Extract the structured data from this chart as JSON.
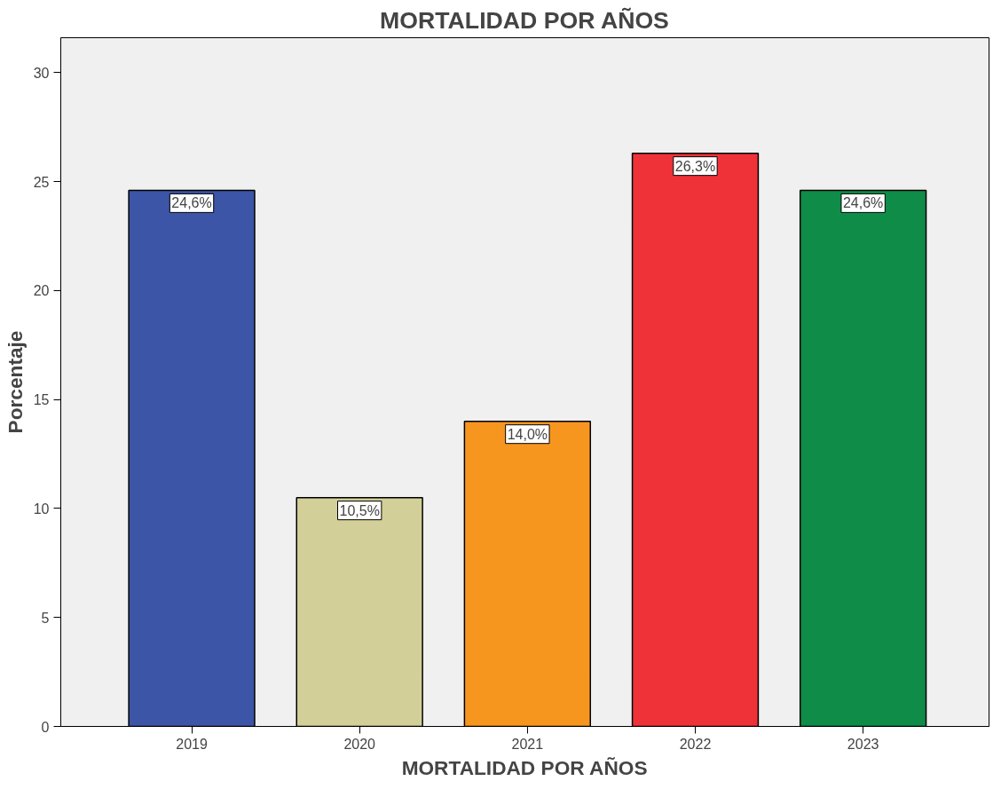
{
  "chart_data": {
    "type": "bar",
    "title": "MORTALIDAD POR AÑOS",
    "xlabel": "MORTALIDAD POR AÑOS",
    "ylabel": "Porcentaje",
    "categories": [
      "2019",
      "2020",
      "2021",
      "2022",
      "2023"
    ],
    "values": [
      24.6,
      10.5,
      14.0,
      26.3,
      24.6
    ],
    "colors": [
      "#3d55a6",
      "#d3cf98",
      "#f7961f",
      "#ef3237",
      "#0f8c47"
    ],
    "value_labels": [
      "24,6%",
      "10,5%",
      "14,0%",
      "26,3%",
      "24,6%"
    ],
    "ylim": [
      0,
      31.6
    ],
    "yticks": [
      0,
      5,
      10,
      15,
      20,
      25,
      30
    ],
    "grid": false
  }
}
